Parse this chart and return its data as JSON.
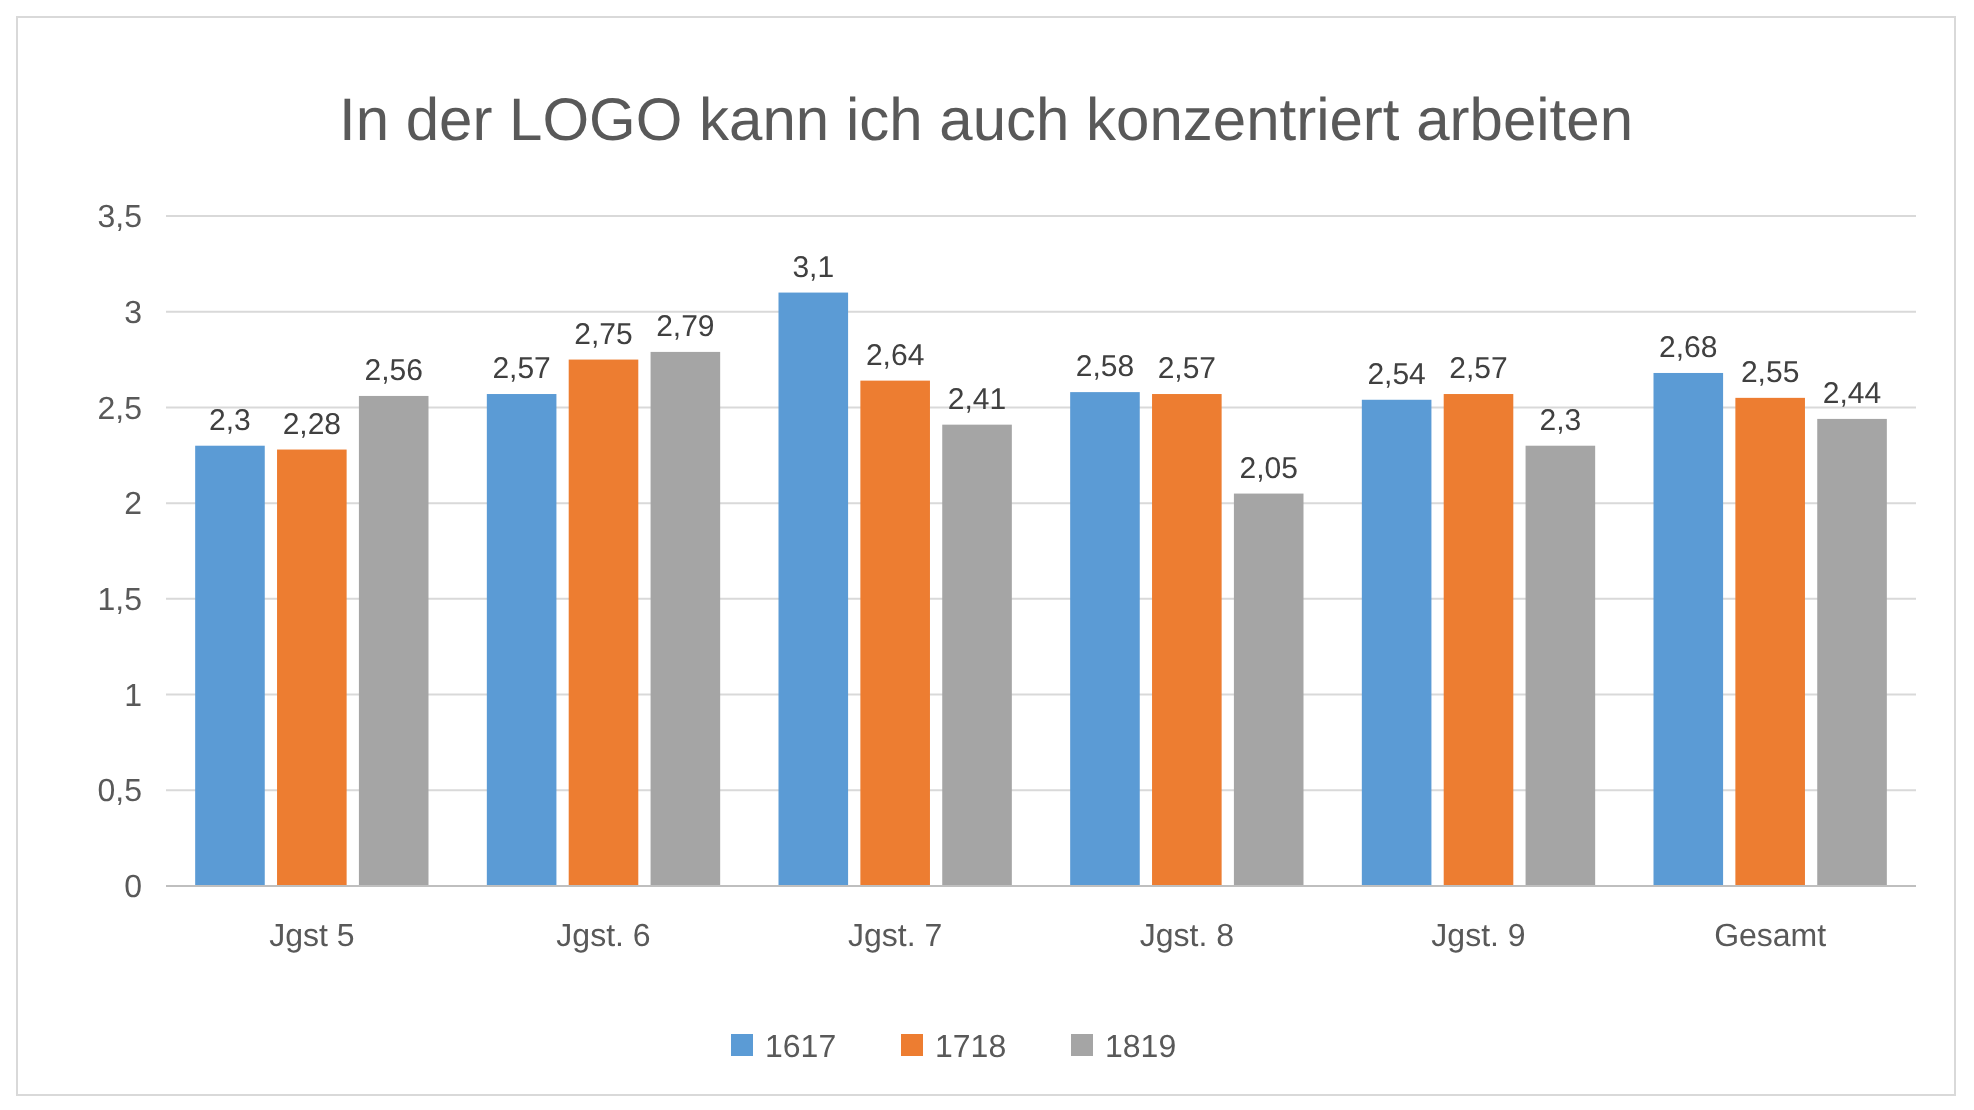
{
  "chart_data": {
    "type": "bar",
    "title": "In der LOGO kann ich auch konzentriert arbeiten",
    "categories": [
      "Jgst 5",
      "Jgst. 6",
      "Jgst. 7",
      "Jgst. 8",
      "Jgst. 9",
      "Gesamt"
    ],
    "series": [
      {
        "name": "1617",
        "color": "#5b9bd5",
        "values": [
          2.3,
          2.57,
          3.1,
          2.58,
          2.54,
          2.68
        ],
        "value_labels": [
          "2,3",
          "2,57",
          "3,1",
          "2,58",
          "2,54",
          "2,68"
        ]
      },
      {
        "name": "1718",
        "color": "#ed7d31",
        "values": [
          2.28,
          2.75,
          2.64,
          2.57,
          2.57,
          2.55
        ],
        "value_labels": [
          "2,28",
          "2,75",
          "2,64",
          "2,57",
          "2,57",
          "2,55"
        ]
      },
      {
        "name": "1819",
        "color": "#a5a5a5",
        "values": [
          2.56,
          2.79,
          2.41,
          2.05,
          2.3,
          2.44
        ],
        "value_labels": [
          "2,56",
          "2,79",
          "2,41",
          "2,05",
          "2,3",
          "2,44"
        ]
      }
    ],
    "ylim": [
      0,
      3.5
    ],
    "yticks": [
      0,
      {
        "value": 0.5,
        "label": "0,5"
      },
      1,
      {
        "value": 1.5,
        "label": "1,5"
      },
      2,
      {
        "value": 2.5,
        "label": "2,5"
      },
      3,
      {
        "value": 3.5,
        "label": "3,5"
      }
    ],
    "grid": "y",
    "legend": "bottom"
  }
}
